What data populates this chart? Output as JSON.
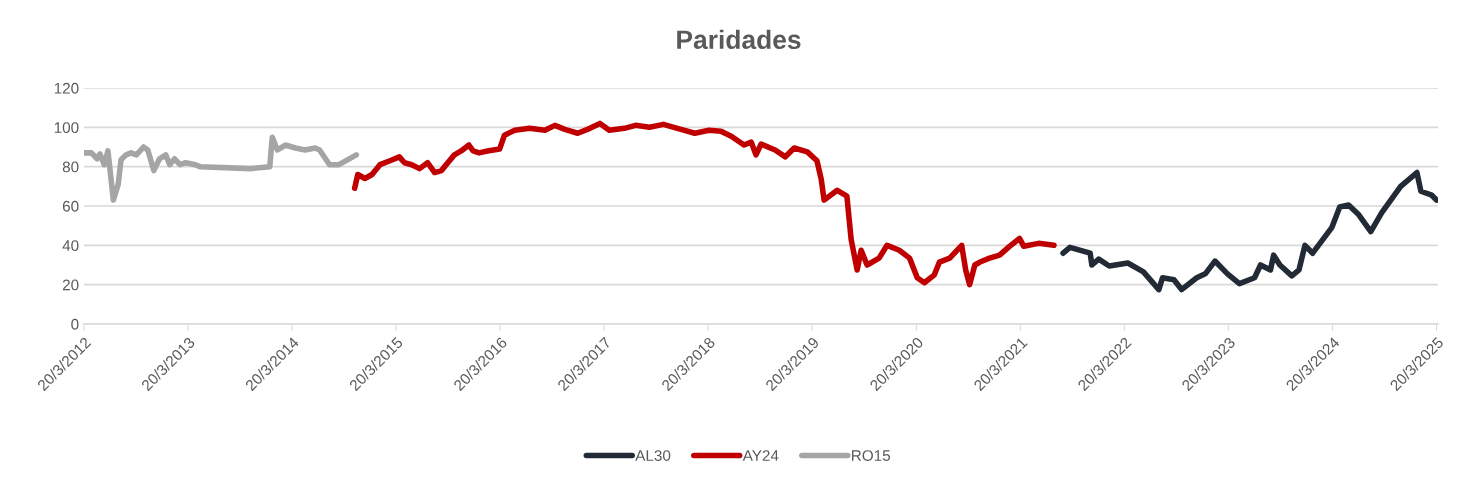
{
  "chart_data": {
    "type": "line",
    "title": "Paridades",
    "ylim": [
      0,
      120
    ],
    "yticks": [
      0,
      20,
      40,
      60,
      80,
      100,
      120
    ],
    "xlim": [
      "2012-03-20",
      "2025-03-25"
    ],
    "xticks": [
      {
        "value": "2012-03-20",
        "label": "20/3/2012"
      },
      {
        "value": "2013-03-20",
        "label": "20/3/2013"
      },
      {
        "value": "2014-03-20",
        "label": "20/3/2014"
      },
      {
        "value": "2015-03-20",
        "label": "20/3/2015"
      },
      {
        "value": "2016-03-20",
        "label": "20/3/2016"
      },
      {
        "value": "2017-03-20",
        "label": "20/3/2017"
      },
      {
        "value": "2018-03-20",
        "label": "20/3/2018"
      },
      {
        "value": "2019-03-20",
        "label": "20/3/2019"
      },
      {
        "value": "2020-03-20",
        "label": "20/3/2020"
      },
      {
        "value": "2021-03-20",
        "label": "20/3/2021"
      },
      {
        "value": "2022-03-20",
        "label": "20/3/2022"
      },
      {
        "value": "2023-03-20",
        "label": "20/3/2023"
      },
      {
        "value": "2024-03-20",
        "label": "20/3/2024"
      },
      {
        "value": "2025-03-20",
        "label": "20/3/2025"
      }
    ],
    "grid": "y",
    "legend": "bottom",
    "marker": "none",
    "line_style": "solid",
    "series": [
      {
        "name": "AL30",
        "color": "#222a35",
        "x": [
          "2021-08-17",
          "2021-09-10",
          "2021-11-20",
          "2021-11-26",
          "2021-12-20",
          "2022-01-26",
          "2022-04-01",
          "2022-05-26",
          "2022-07-19",
          "2022-08-01",
          "2022-09-10",
          "2022-10-07",
          "2022-11-29",
          "2022-12-29",
          "2023-02-01",
          "2023-03-17",
          "2023-04-28",
          "2023-06-20",
          "2023-07-11",
          "2023-08-15",
          "2023-08-26",
          "2023-09-17",
          "2023-10-29",
          "2023-11-23",
          "2023-12-14",
          "2024-01-10",
          "2024-03-17",
          "2024-04-14",
          "2024-05-15",
          "2024-06-20",
          "2024-08-01",
          "2024-09-08",
          "2024-11-14",
          "2025-01-10",
          "2025-01-24",
          "2025-03-03",
          "2025-03-20"
        ],
        "values": [
          36,
          39,
          36,
          30,
          33,
          29.5,
          31,
          26.5,
          17.5,
          23.5,
          22.5,
          17.5,
          23.5,
          25.5,
          32,
          25.5,
          20.5,
          23.5,
          30,
          27.5,
          35,
          30,
          24.5,
          27.5,
          40,
          36,
          49,
          59.5,
          60.5,
          55.5,
          47,
          56.5,
          70,
          77,
          67.5,
          65.5,
          63
        ]
      },
      {
        "name": "AY24",
        "color": "#c00000",
        "x": [
          "2014-10-26",
          "2014-11-06",
          "2014-12-01",
          "2014-12-26",
          "2015-01-23",
          "2015-02-27",
          "2015-04-01",
          "2015-04-19",
          "2015-05-14",
          "2015-06-11",
          "2015-07-09",
          "2015-08-03",
          "2015-08-27",
          "2015-09-18",
          "2015-10-11",
          "2015-11-04",
          "2015-12-01",
          "2015-12-16",
          "2016-01-06",
          "2016-02-04",
          "2016-03-18",
          "2016-04-04",
          "2016-05-10",
          "2016-07-01",
          "2016-08-24",
          "2016-09-28",
          "2016-11-02",
          "2016-12-17",
          "2017-01-29",
          "2017-03-05",
          "2017-04-07",
          "2017-05-30",
          "2017-07-08",
          "2017-08-26",
          "2017-10-14",
          "2017-12-02",
          "2018-02-01",
          "2018-03-23",
          "2018-05-04",
          "2018-06-09",
          "2018-07-24",
          "2018-08-18",
          "2018-09-04",
          "2018-09-22",
          "2018-11-10",
          "2018-12-16",
          "2019-01-16",
          "2019-03-03",
          "2019-04-06",
          "2019-04-21",
          "2019-05-01",
          "2019-06-16",
          "2019-07-20",
          "2019-08-04",
          "2019-08-25",
          "2019-09-08",
          "2019-09-29",
          "2019-11-10",
          "2019-12-08",
          "2020-01-20",
          "2020-02-25",
          "2020-03-23",
          "2020-04-17",
          "2020-05-22",
          "2020-06-09",
          "2020-07-15",
          "2020-08-26",
          "2020-09-09",
          "2020-09-23",
          "2020-10-11",
          "2020-10-29",
          "2020-12-02",
          "2021-01-06",
          "2021-02-10",
          "2021-03-17",
          "2021-04-01",
          "2021-05-23",
          "2021-07-16"
        ],
        "values": [
          69,
          76,
          74,
          76,
          81,
          83,
          85,
          82,
          81,
          79,
          82,
          77,
          78,
          82,
          86,
          88,
          91,
          88,
          87,
          88,
          89,
          96,
          98.5,
          99.5,
          98.5,
          101,
          99,
          97,
          99.5,
          102,
          98.5,
          99.5,
          101,
          100,
          101.5,
          99.5,
          97,
          98.5,
          98,
          95.5,
          91,
          92.5,
          86,
          91.5,
          88.5,
          85,
          89.5,
          87.5,
          83,
          73.5,
          63,
          68,
          65,
          43,
          27.5,
          37.5,
          30,
          33.5,
          40,
          37.5,
          33.5,
          23.5,
          21,
          25,
          31.5,
          33.5,
          40,
          27.5,
          20,
          30,
          31.5,
          33.5,
          35,
          39.5,
          43.5,
          39.5,
          41,
          40
        ]
      },
      {
        "name": "RO15",
        "color": "#a5a5a5",
        "x": [
          "2012-03-20",
          "2012-04-15",
          "2012-05-05",
          "2012-05-15",
          "2012-05-30",
          "2012-06-12",
          "2012-06-25",
          "2012-07-01",
          "2012-07-18",
          "2012-07-28",
          "2012-08-15",
          "2012-09-01",
          "2012-09-20",
          "2012-10-15",
          "2012-10-30",
          "2012-11-20",
          "2012-12-10",
          "2013-01-01",
          "2013-01-15",
          "2013-02-01",
          "2013-02-20",
          "2013-03-12",
          "2013-04-15",
          "2013-05-01",
          "2013-10-25",
          "2014-01-01",
          "2014-01-10",
          "2014-01-28",
          "2014-02-25",
          "2014-04-01",
          "2014-05-05",
          "2014-06-10",
          "2014-06-25",
          "2014-07-30",
          "2014-09-01",
          "2014-11-01"
        ],
        "values": [
          87,
          87,
          84,
          86.5,
          81,
          88,
          71,
          63,
          71,
          83.5,
          86,
          87,
          86,
          90,
          88.5,
          78,
          84,
          86,
          81,
          84,
          81,
          82,
          81,
          80,
          79,
          80,
          95,
          88.5,
          91,
          89.5,
          88.5,
          89.5,
          88.5,
          81,
          81,
          86
        ]
      }
    ]
  }
}
